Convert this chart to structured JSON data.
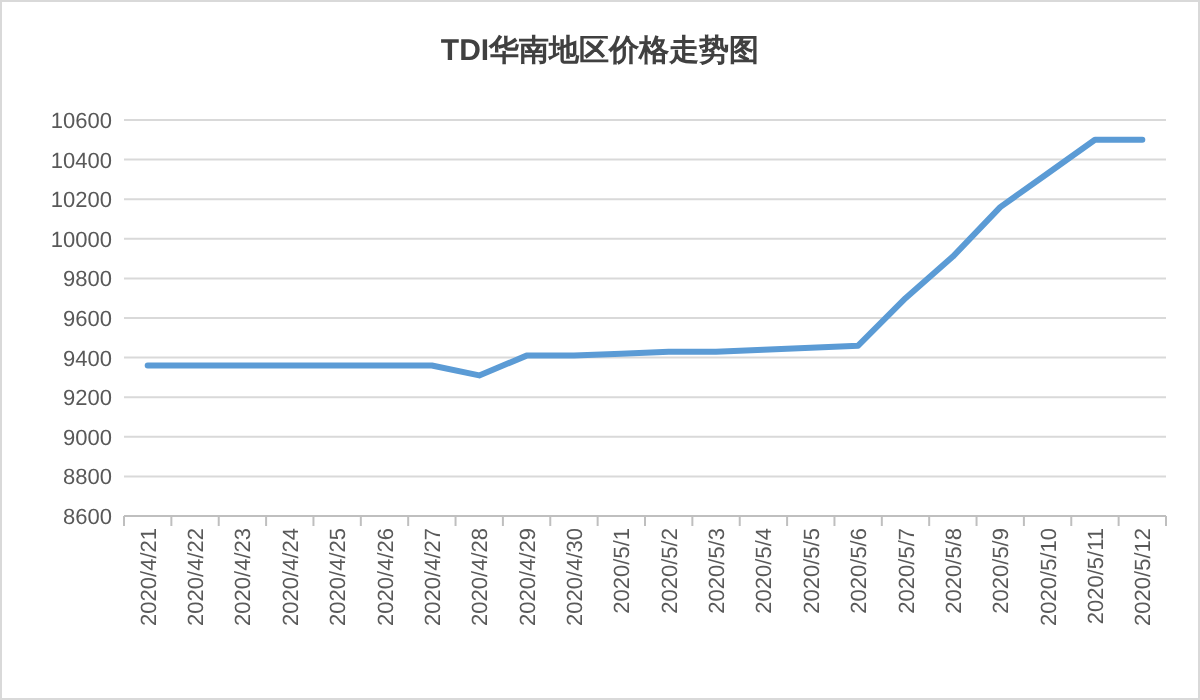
{
  "chart_data": {
    "type": "line",
    "title": "TDI华南地区价格走势图",
    "categories": [
      "2020/4/21",
      "2020/4/22",
      "2020/4/23",
      "2020/4/24",
      "2020/4/25",
      "2020/4/26",
      "2020/4/27",
      "2020/4/28",
      "2020/4/29",
      "2020/4/30",
      "2020/5/1",
      "2020/5/2",
      "2020/5/3",
      "2020/5/4",
      "2020/5/5",
      "2020/5/6",
      "2020/5/7",
      "2020/5/8",
      "2020/5/9",
      "2020/5/10",
      "2020/5/11",
      "2020/5/12"
    ],
    "series": [
      {
        "color": "#5b9bd5",
        "values": [
          9360,
          9360,
          9360,
          9360,
          9360,
          9360,
          9360,
          9310,
          9410,
          9410,
          9420,
          9430,
          9430,
          9440,
          9450,
          9460,
          9700,
          9910,
          10160,
          10330,
          10500,
          10500
        ]
      }
    ],
    "ylim": [
      8600,
      10600
    ],
    "yticks": [
      8600,
      8800,
      9000,
      9200,
      9400,
      9600,
      9800,
      10000,
      10200,
      10400,
      10600
    ],
    "grid": "y",
    "marker": "none",
    "line_style": "solid"
  }
}
